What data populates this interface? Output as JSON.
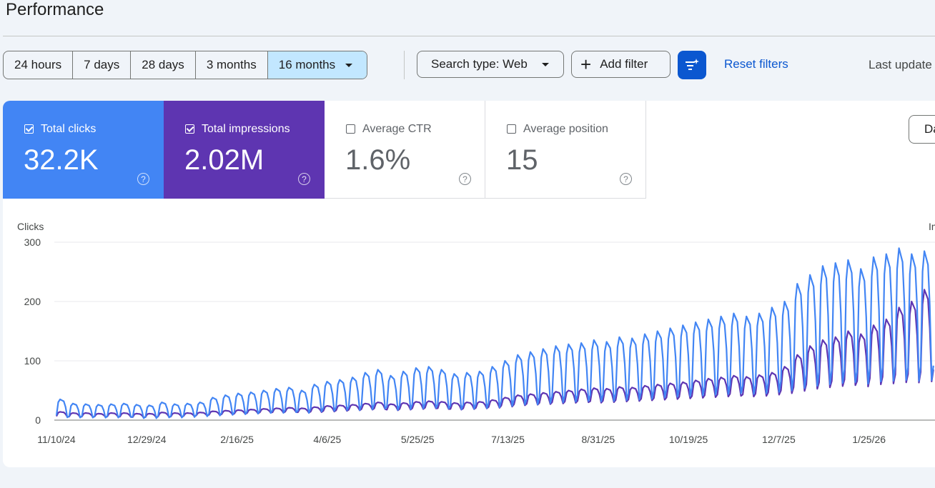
{
  "page": {
    "title": "Performance"
  },
  "toolbar": {
    "date_ranges": [
      "24 hours",
      "7 days",
      "28 days",
      "3 months",
      "16 months"
    ],
    "selected_range": "16 months",
    "search_type_label": "Search type: Web",
    "add_filter_label": "Add filter",
    "reset_filters_label": "Reset filters",
    "last_updated_text": "Last update"
  },
  "metrics": [
    {
      "label": "Total clicks",
      "value": "32.2K",
      "checked": true,
      "color": "#4285f4"
    },
    {
      "label": "Total impressions",
      "value": "2.02M",
      "checked": true,
      "color": "#5e35b1"
    },
    {
      "label": "Average CTR",
      "value": "1.6%",
      "checked": false
    },
    {
      "label": "Average position",
      "value": "15",
      "checked": false
    }
  ],
  "download_label": "Da",
  "icons": {
    "help": "help-circle-icon",
    "ai_filter": "ai-filter-icon",
    "plus": "plus-icon",
    "dropdown": "chevron-down-icon"
  },
  "chart_data": {
    "type": "line",
    "ylabel_left": "Clicks",
    "ylabel_right": "Im",
    "y_ticks": [
      "300",
      "200",
      "100",
      "0"
    ],
    "ylim": [
      0,
      300
    ],
    "x_tick_labels": [
      "11/10/24",
      "12/29/24",
      "2/16/25",
      "4/6/25",
      "5/25/25",
      "7/13/25",
      "8/31/25",
      "10/19/25",
      "12/7/25",
      "1/25/26"
    ],
    "grid": true,
    "series": [
      {
        "color": "#4285f4",
        "axis": "left",
        "weekly_peak": [
          35,
          28,
          27,
          26,
          27,
          28,
          26,
          25,
          30,
          27,
          28,
          30,
          38,
          42,
          45,
          47,
          50,
          53,
          55,
          50,
          60,
          65,
          68,
          72,
          80,
          85,
          75,
          82,
          88,
          90,
          85,
          78,
          80,
          82,
          90,
          100,
          110,
          115,
          120,
          125,
          128,
          130,
          135,
          132,
          140,
          138,
          145,
          150,
          155,
          160,
          165,
          170,
          175,
          180,
          175,
          180,
          190,
          200,
          230,
          245,
          260,
          265,
          270,
          255,
          275,
          280,
          290,
          280,
          285,
          290
        ],
        "weekly_trough": [
          3,
          3,
          3,
          3,
          3,
          4,
          2,
          2,
          3,
          3,
          4,
          5,
          6,
          7,
          8,
          9,
          10,
          10,
          11,
          10,
          12,
          13,
          14,
          14,
          15,
          16,
          14,
          15,
          16,
          17,
          16,
          15,
          16,
          17,
          18,
          20,
          22,
          22,
          24,
          25,
          26,
          27,
          26,
          27,
          28,
          29,
          30,
          32,
          33,
          34,
          35,
          36,
          37,
          38,
          37,
          38,
          40,
          42,
          45,
          48,
          50,
          52,
          53,
          51,
          54,
          55,
          56,
          55,
          56,
          57
        ]
      },
      {
        "color": "#5e35b1",
        "axis": "right",
        "weekly_peak": [
          14,
          12,
          12,
          11,
          12,
          12,
          11,
          11,
          13,
          12,
          12,
          13,
          15,
          16,
          17,
          18,
          19,
          20,
          21,
          20,
          22,
          24,
          25,
          26,
          28,
          30,
          27,
          29,
          31,
          32,
          31,
          29,
          30,
          31,
          34,
          38,
          42,
          44,
          46,
          48,
          50,
          52,
          54,
          53,
          56,
          55,
          58,
          60,
          62,
          64,
          67,
          70,
          72,
          75,
          73,
          76,
          80,
          90,
          110,
          125,
          135,
          140,
          150,
          145,
          160,
          170,
          190,
          200,
          220,
          240
        ],
        "weekly_trough": [
          5,
          5,
          5,
          5,
          5,
          5,
          4,
          4,
          5,
          5,
          6,
          7,
          8,
          9,
          10,
          11,
          12,
          12,
          13,
          12,
          13,
          14,
          15,
          16,
          17,
          18,
          16,
          17,
          18,
          19,
          18,
          17,
          18,
          19,
          20,
          22,
          24,
          25,
          26,
          27,
          28,
          29,
          28,
          29,
          30,
          31,
          32,
          33,
          34,
          35,
          36,
          37,
          38,
          39,
          38,
          39,
          41,
          43,
          46,
          49,
          51,
          53,
          54,
          52,
          55,
          56,
          57,
          56,
          57,
          58
        ]
      }
    ]
  }
}
